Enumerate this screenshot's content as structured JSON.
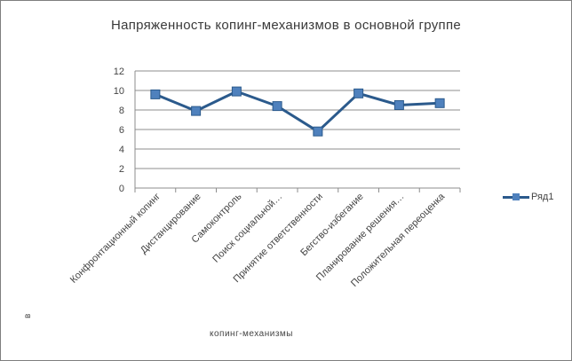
{
  "chart_data": {
    "type": "line",
    "title": "Напряженность копинг-механизмов  в основной группе",
    "xlabel": "копинг-механизмы",
    "ylabel": "в",
    "ylim": [
      0,
      12
    ],
    "yticks": [
      0,
      2,
      4,
      6,
      8,
      10,
      12
    ],
    "grid": true,
    "legend_position": "right",
    "categories": [
      "Конфронтационный копинг",
      "Дистанцирование",
      "Самоконтроль",
      "Поиск социальной…",
      "Принятие ответственности",
      "Бегство-избегание",
      "Планирование решения…",
      "Положительная переоценка"
    ],
    "series": [
      {
        "name": "Ряд1",
        "values": [
          9.6,
          7.9,
          9.9,
          8.4,
          5.8,
          9.7,
          8.5,
          8.7
        ],
        "color": "#2b5a8c",
        "marker_color": "#4f81bd"
      }
    ]
  }
}
